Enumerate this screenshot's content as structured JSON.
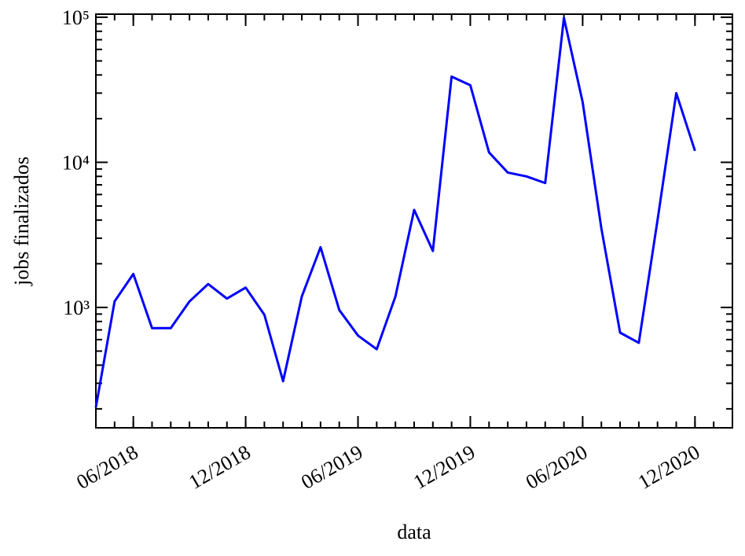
{
  "chart_data": {
    "type": "line",
    "x_label": "data",
    "y_label": "jobs finalizados",
    "x": [
      "04/2018",
      "05/2018",
      "06/2018",
      "07/2018",
      "08/2018",
      "09/2018",
      "10/2018",
      "11/2018",
      "12/2018",
      "01/2019",
      "02/2019",
      "03/2019",
      "04/2019",
      "05/2019",
      "06/2019",
      "07/2019",
      "08/2019",
      "09/2019",
      "10/2019",
      "11/2019",
      "12/2019",
      "01/2020",
      "02/2020",
      "03/2020",
      "04/2020",
      "05/2020",
      "06/2020",
      "07/2020",
      "08/2020",
      "09/2020",
      "10/2020",
      "11/2020",
      "12/2020"
    ],
    "values": [
      205,
      1100,
      1700,
      720,
      720,
      1100,
      1450,
      1150,
      1370,
      890,
      310,
      1190,
      2600,
      960,
      640,
      515,
      1190,
      4700,
      2450,
      39000,
      34000,
      11700,
      8500,
      8000,
      7200,
      99000,
      26000,
      3500,
      670,
      570,
      4000,
      30000,
      12000
    ],
    "color": "#0000ff",
    "xlim": [
      "04/2018",
      "02/2021"
    ],
    "xticks": [
      "06/2018",
      "12/2018",
      "06/2019",
      "12/2019",
      "06/2020",
      "12/2020"
    ],
    "ylim": [
      148,
      105000
    ],
    "yscale": "log",
    "yticks": [
      {
        "value": 1000,
        "label": "10³"
      },
      {
        "value": 10000,
        "label": "10⁴"
      },
      {
        "value": 100000,
        "label": "10⁵"
      }
    ]
  }
}
